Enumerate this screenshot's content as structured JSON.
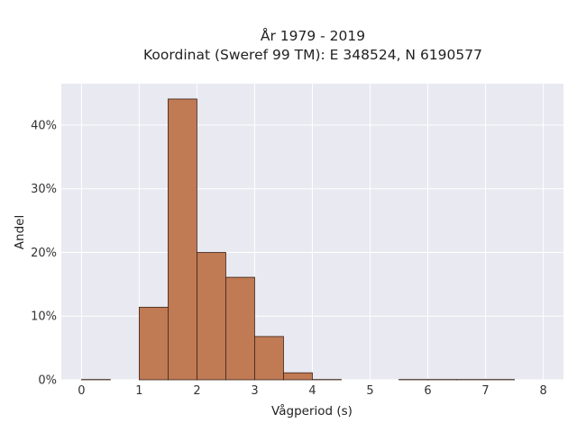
{
  "chart_data": {
    "type": "bar",
    "title_lines": [
      "År 1979 - 2019",
      "Koordinat (Sweref 99 TM): E 348524, N 6190577"
    ],
    "xlabel": "Vågperiod (s)",
    "ylabel": "Andel",
    "xlim": [
      -0.35,
      8.35
    ],
    "ylim": [
      0,
      0.465
    ],
    "bin_width": 0.5,
    "x_ticks": [
      {
        "value": 0,
        "label": "0"
      },
      {
        "value": 1,
        "label": "1"
      },
      {
        "value": 2,
        "label": "2"
      },
      {
        "value": 3,
        "label": "3"
      },
      {
        "value": 4,
        "label": "4"
      },
      {
        "value": 5,
        "label": "5"
      },
      {
        "value": 6,
        "label": "6"
      },
      {
        "value": 7,
        "label": "7"
      },
      {
        "value": 8,
        "label": "8"
      }
    ],
    "y_ticks": [
      {
        "value": 0,
        "label": "0%"
      },
      {
        "value": 0.1,
        "label": "10%"
      },
      {
        "value": 0.2,
        "label": "20%"
      },
      {
        "value": 0.3,
        "label": "30%"
      },
      {
        "value": 0.4,
        "label": "40%"
      }
    ],
    "bins": [
      {
        "x0": 0.0,
        "x1": 0.5,
        "value": 0.0005
      },
      {
        "x0": 1.0,
        "x1": 1.5,
        "value": 0.114
      },
      {
        "x0": 1.5,
        "x1": 2.0,
        "value": 0.441
      },
      {
        "x0": 2.0,
        "x1": 2.5,
        "value": 0.2
      },
      {
        "x0": 2.5,
        "x1": 3.0,
        "value": 0.161
      },
      {
        "x0": 3.0,
        "x1": 3.5,
        "value": 0.068
      },
      {
        "x0": 3.5,
        "x1": 4.0,
        "value": 0.011
      },
      {
        "x0": 4.0,
        "x1": 4.5,
        "value": 0.0005
      },
      {
        "x0": 5.5,
        "x1": 6.0,
        "value": 0.0005
      },
      {
        "x0": 6.0,
        "x1": 6.5,
        "value": 0.0005
      },
      {
        "x0": 6.5,
        "x1": 7.0,
        "value": 0.0005
      },
      {
        "x0": 7.0,
        "x1": 7.5,
        "value": 0.0005
      }
    ],
    "bar_color": "#c07a54",
    "bar_edge_color": "#3a2418",
    "plot_background": "#e9e9f1",
    "grid": true,
    "legend": false
  }
}
